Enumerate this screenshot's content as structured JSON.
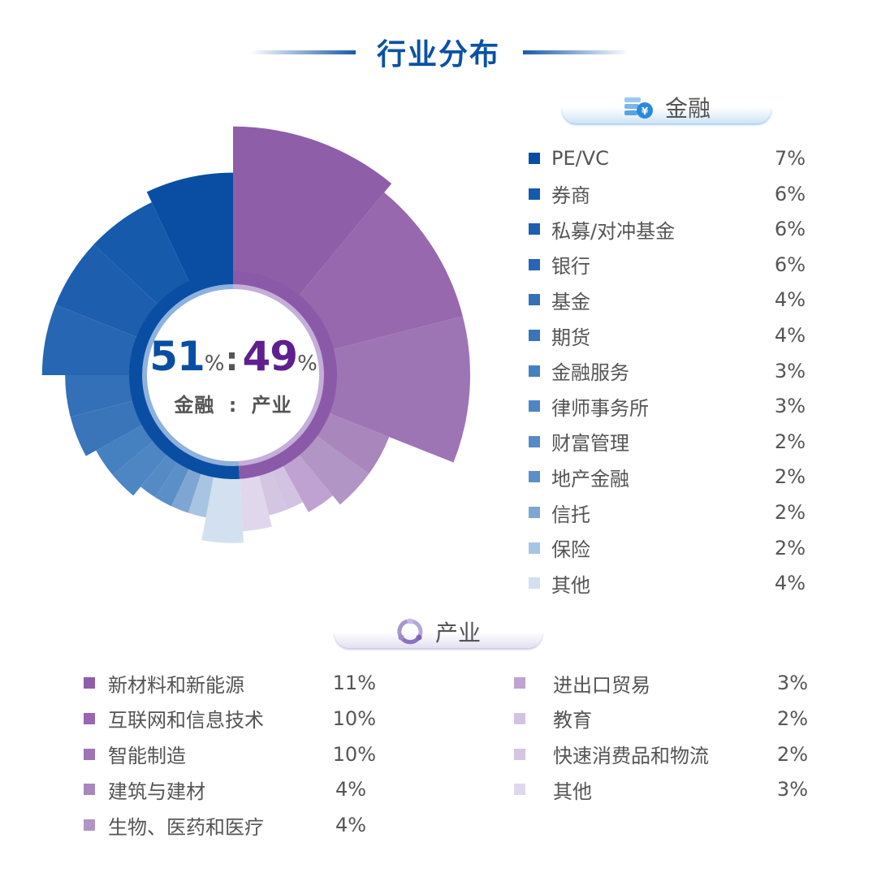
{
  "header": {
    "title": "行业分布"
  },
  "center": {
    "finance_pct": "51",
    "industry_pct": "49",
    "pct_sign": "%",
    "colon": "∶",
    "finance_label": "金融",
    "sep": "：",
    "industry_label": "产业"
  },
  "finance_section": {
    "title": "金融",
    "icon": "coin-stack-yen-icon"
  },
  "industry_section": {
    "title": "产业",
    "icon": "network-cycle-icon"
  },
  "colors": {
    "finance_accent": "#0a4ea3",
    "industry_accent": "#5e1f8f"
  },
  "chart_data": {
    "type": "pie",
    "subtype": "nightingale-rose (radius and angle proportional to value)",
    "title": "行业分布",
    "groups": [
      {
        "name": "金融",
        "total_pct": 51,
        "direction": "counterclockwise from top"
      },
      {
        "name": "产业",
        "total_pct": 49,
        "direction": "clockwise from top"
      }
    ],
    "series": [
      {
        "name": "金融",
        "categories": [
          "PE/VC",
          "券商",
          "私募/对冲基金",
          "银行",
          "基金",
          "期货",
          "金融服务",
          "律师事务所",
          "财富管理",
          "地产金融",
          "信托",
          "保险",
          "其他"
        ],
        "values": [
          7,
          6,
          6,
          6,
          4,
          4,
          3,
          3,
          2,
          2,
          2,
          2,
          4
        ],
        "labels": [
          "7%",
          "6%",
          "6%",
          "6%",
          "4%",
          "4%",
          "3%",
          "3%",
          "2%",
          "2%",
          "2%",
          "2%",
          "4%"
        ],
        "colors": [
          "#0a4ea3",
          "#155aab",
          "#1d5fae",
          "#2766b2",
          "#3470b7",
          "#3a74b9",
          "#4580c0",
          "#4d86c3",
          "#558bc5",
          "#5a8fc7",
          "#7fa5d3",
          "#a8c4e3",
          "#d3e0ef"
        ]
      },
      {
        "name": "产业",
        "categories": [
          "新材料和新能源",
          "互联网和信息技术",
          "智能制造",
          "建筑与建材",
          "生物、医药和医疗",
          "进出口贸易",
          "教育",
          "快速消费品和物流",
          "其他"
        ],
        "values": [
          11,
          10,
          10,
          4,
          4,
          3,
          2,
          2,
          3
        ],
        "labels": [
          "11%",
          "10%",
          "10%",
          "4%",
          "4%",
          "3%",
          "2%",
          "2%",
          "3%"
        ],
        "colors": [
          "#8e5fa8",
          "#9768ae",
          "#9d75b4",
          "#a987bd",
          "#b195c5",
          "#c0a2d2",
          "#d3c3e3",
          "#d4c5e2",
          "#e0d7ec"
        ]
      }
    ],
    "legend_position": "right (金融) and bottom (产业)",
    "grid": false
  }
}
